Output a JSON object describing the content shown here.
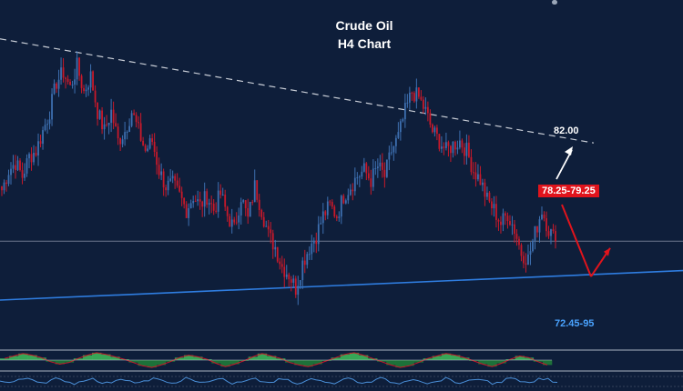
{
  "chart_data": {
    "type": "candlestick",
    "title": "Crude Oil",
    "subtitle": "H4  Chart",
    "annotations": {
      "upper_target": "82.00",
      "pivot_zone": "78.25-79.25",
      "lower_target": "72.45-95"
    },
    "price_path": [
      76.6,
      77.6,
      78.0,
      77.3,
      78.3,
      78.6,
      79.6,
      80.6,
      82.1,
      82.6,
      81.8,
      82.9,
      81.6,
      82.4,
      80.6,
      79.6,
      80.6,
      79.1,
      79.6,
      80.6,
      79.6,
      78.6,
      79.1,
      77.6,
      76.8,
      76.9,
      76.3,
      75.6,
      76.3,
      75.8,
      76.3,
      75.6,
      76.4,
      75.3,
      74.6,
      76.3,
      75.1,
      76.8,
      75.6,
      74.3,
      73.7,
      72.7,
      72.3,
      71.6,
      72.9,
      73.7,
      74.3,
      75.3,
      75.8,
      75.3,
      76.3,
      76.8,
      77.3,
      77.6,
      77.1,
      77.8,
      77.3,
      78.6,
      79.3,
      80.6,
      81.6,
      81.3,
      80.6,
      79.6,
      79.1,
      78.6,
      78.9,
      79.1,
      78.6,
      77.6,
      77.1,
      76.1,
      75.6,
      74.9,
      75.4,
      74.6,
      73.4,
      73.1,
      74.4,
      75.6,
      74.6,
      74.0
    ],
    "projection": {
      "down_to": 72.2,
      "up_to": 73.65
    },
    "resistance_trendline": {
      "start": 84.3,
      "end": 79.0
    },
    "support_trendline": {
      "start": 71.0,
      "end": 72.5
    },
    "horizontal_level": 74.0,
    "indicator_histogram": [
      0.2,
      0.5,
      0.8,
      0.6,
      0.3,
      -0.2,
      -0.5,
      -0.3,
      0.2,
      0.6,
      0.9,
      0.7,
      0.4,
      0.1,
      -0.3,
      -0.7,
      -0.9,
      -0.6,
      -0.2,
      0.3,
      0.6,
      0.4,
      0.1,
      -0.4,
      -0.8,
      -0.5,
      -0.1,
      0.4,
      0.8,
      0.5,
      0.2,
      -0.3,
      -0.6,
      -0.8,
      -0.5,
      -0.1,
      0.3,
      0.7,
      0.9,
      0.6,
      0.2,
      -0.2,
      -0.6,
      -0.9,
      -0.7,
      -0.3,
      0.2,
      0.5,
      0.8,
      0.6,
      0.3,
      -0.1,
      -0.5,
      -0.8,
      -0.4,
      0.1,
      0.5,
      0.3,
      -0.2,
      -0.6
    ],
    "colors": {
      "background": "#0e1e3a",
      "bull_candle": "#3d6fb0",
      "bear_candle": "#c8192a",
      "resistance_line": "#c8cdd6",
      "support_line": "#2f7de0",
      "target_label": "#ffffff",
      "pivot_label_bg": "#e0141c",
      "support_label": "#4aa3ff",
      "arrow_up": "#ffffff",
      "arrow_down": "#e0141c",
      "indicator_green": "#3cb55a",
      "indicator_red": "#c8192a"
    }
  }
}
